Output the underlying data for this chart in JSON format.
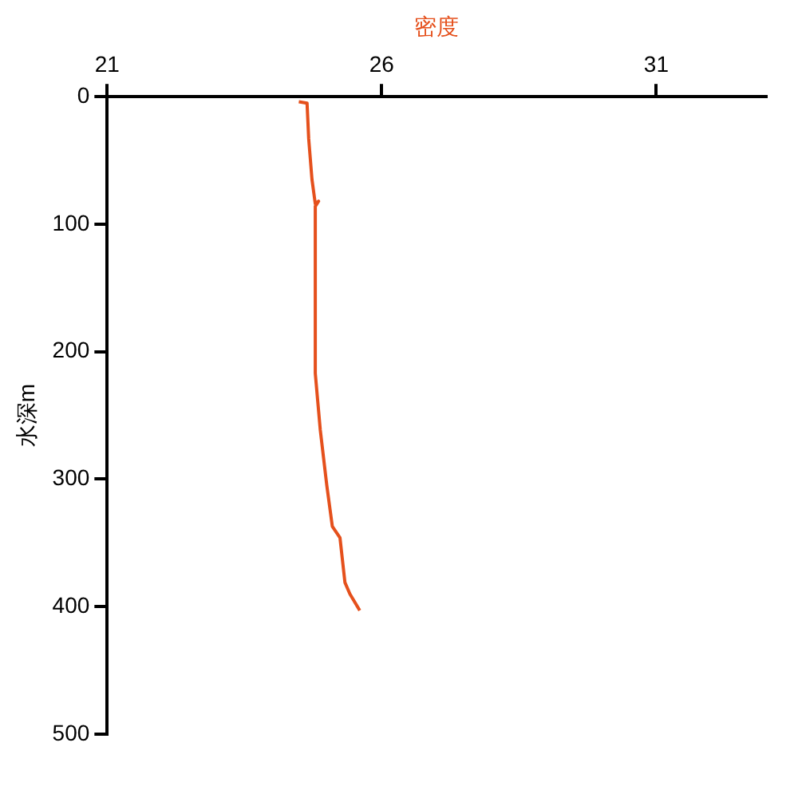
{
  "chart_data": {
    "type": "line",
    "xlabel": "密度",
    "ylabel": "水深m",
    "x": [
      24.49,
      24.64,
      24.67,
      24.73,
      24.79,
      24.85,
      24.79,
      24.79,
      24.88,
      25.0,
      25.1,
      25.24,
      25.33,
      25.42,
      25.6
    ],
    "series": [
      {
        "color": "#e5501c",
        "values": [
          4,
          5,
          33,
          65,
          84,
          82,
          86,
          217,
          261,
          305,
          337,
          346,
          381,
          390,
          403
        ]
      }
    ],
    "xlim": [
      21,
      33
    ],
    "xticks": [
      21,
      26,
      31
    ],
    "ylim": [
      500,
      0
    ],
    "yticks": [
      0,
      100,
      200,
      300,
      400,
      500
    ],
    "grid": false,
    "legend": false,
    "marker": "none",
    "line_style": "solid"
  }
}
